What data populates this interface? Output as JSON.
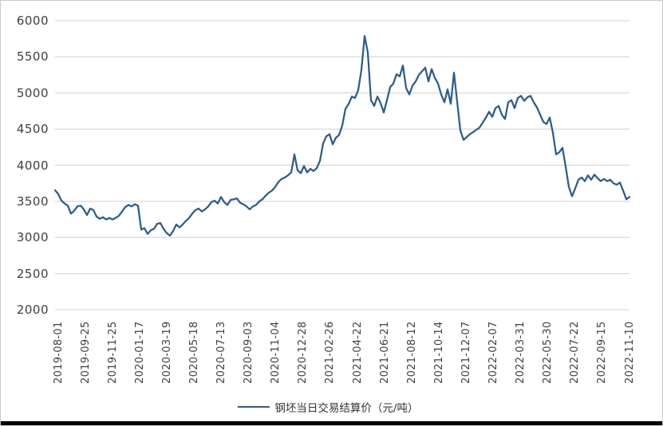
{
  "chart_data": {
    "type": "line",
    "title": "",
    "xlabel": "",
    "ylabel": "",
    "ylim": [
      2000,
      6000
    ],
    "y_ticks": [
      2000,
      2500,
      3000,
      3500,
      4000,
      4500,
      5000,
      5500,
      6000
    ],
    "grid": "horizontal",
    "legend_position": "bottom",
    "x_range": [
      "2019-08-01",
      "2022-11-10"
    ],
    "categories": [
      "2019-08-01",
      "2019-09-25",
      "2019-11-25",
      "2020-01-17",
      "2020-03-19",
      "2020-05-18",
      "2020-07-13",
      "2020-09-03",
      "2020-11-04",
      "2020-12-28",
      "2021-02-26",
      "2021-04-22",
      "2021-06-21",
      "2021-08-12",
      "2021-10-14",
      "2021-12-07",
      "2022-02-07",
      "2022-03-31",
      "2022-05-30",
      "2022-07-22",
      "2022-09-15",
      "2022-11-10"
    ],
    "series": [
      {
        "name": "钢坯当日交易结算价（元/吨）",
        "color": "#2b5d8b",
        "values": [
          3655,
          3600,
          3510,
          3470,
          3440,
          3330,
          3370,
          3430,
          3440,
          3390,
          3310,
          3400,
          3380,
          3290,
          3260,
          3280,
          3250,
          3270,
          3250,
          3270,
          3300,
          3360,
          3420,
          3450,
          3430,
          3460,
          3440,
          3110,
          3130,
          3050,
          3100,
          3120,
          3190,
          3200,
          3120,
          3060,
          3025,
          3090,
          3180,
          3140,
          3180,
          3230,
          3270,
          3330,
          3380,
          3400,
          3360,
          3390,
          3430,
          3490,
          3510,
          3470,
          3560,
          3490,
          3450,
          3520,
          3530,
          3540,
          3480,
          3460,
          3430,
          3390,
          3430,
          3450,
          3500,
          3530,
          3580,
          3620,
          3650,
          3700,
          3770,
          3810,
          3830,
          3860,
          3900,
          4150,
          3930,
          3890,
          3990,
          3900,
          3950,
          3920,
          3960,
          4060,
          4300,
          4400,
          4430,
          4290,
          4380,
          4420,
          4550,
          4780,
          4850,
          4950,
          4930,
          5040,
          5320,
          5790,
          5560,
          4900,
          4820,
          4950,
          4860,
          4730,
          4900,
          5080,
          5130,
          5260,
          5230,
          5380,
          5070,
          4980,
          5100,
          5160,
          5250,
          5300,
          5350,
          5160,
          5330,
          5210,
          5130,
          4980,
          4870,
          5050,
          4850,
          5280,
          4880,
          4480,
          4350,
          4390,
          4430,
          4460,
          4490,
          4520,
          4590,
          4660,
          4740,
          4670,
          4790,
          4820,
          4700,
          4640,
          4870,
          4900,
          4790,
          4930,
          4960,
          4890,
          4940,
          4960,
          4870,
          4800,
          4700,
          4600,
          4570,
          4660,
          4450,
          4150,
          4180,
          4240,
          3980,
          3700,
          3570,
          3680,
          3800,
          3830,
          3780,
          3860,
          3800,
          3870,
          3820,
          3780,
          3810,
          3780,
          3800,
          3750,
          3730,
          3760,
          3650,
          3530,
          3560
        ]
      }
    ]
  },
  "colors": {
    "line": "#2b5d8b",
    "gridline": "#d9d9d9",
    "axis_text": "#3f3f3f",
    "frame_border": "#c9c9c9",
    "bottom_bar": "#000000",
    "background": "#ffffff"
  }
}
